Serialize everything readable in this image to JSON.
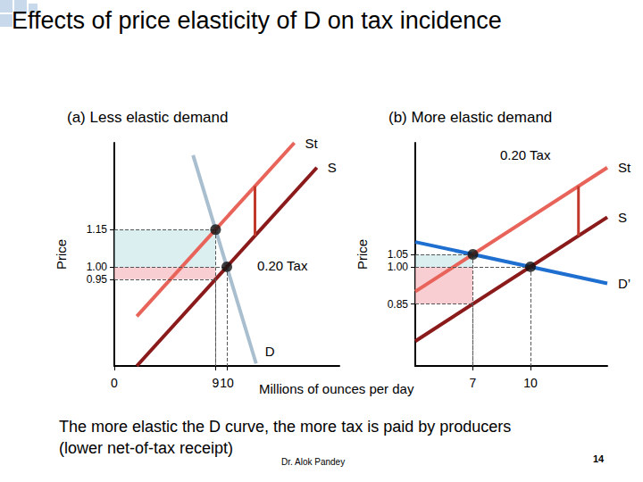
{
  "slide": {
    "title": "Effects of price elasticity of D on tax incidence",
    "footer": [
      "The more elastic the D curve, the more tax is paid by producers",
      "(lower net-of-tax receipt)"
    ],
    "author": "Dr. Alok Pandey",
    "page": 14
  },
  "chart_data": [
    {
      "type": "line",
      "title": "(a) Less elastic demand",
      "x_label": "Millions of ounces per day",
      "y_label": "Price",
      "xlim": [
        0,
        20
      ],
      "ylim": [
        0.6,
        1.5
      ],
      "xticks": [
        0,
        9,
        10
      ],
      "yticks": [
        0.95,
        {
          "value": 1,
          "label": "1.00"
        },
        1.15
      ],
      "grid": false,
      "series": [
        {
          "name": "D",
          "color": "#a9bfcf",
          "x": [
            7,
            12.6
          ],
          "values": [
            1.45,
            0.61
          ]
        },
        {
          "name": "S",
          "color": "#8b1a1a",
          "x": [
            2,
            18
          ],
          "values": [
            0.6,
            1.4
          ]
        },
        {
          "name": "St",
          "color": "#e8645a",
          "x": [
            2,
            16
          ],
          "values": [
            0.8,
            1.5
          ]
        }
      ],
      "points": {
        "with_tax": [
          9,
          1.15
        ],
        "without_tax": [
          10,
          1
        ],
        "net_of_tax": [
          9,
          0.95
        ]
      },
      "tax": 0.2,
      "tax_label": "0.20 Tax"
    },
    {
      "type": "line",
      "title": "(b) More elastic demand",
      "y_label": "Price",
      "xlim": [
        4,
        14
      ],
      "ylim": [
        0.6,
        1.5
      ],
      "xticks": [
        7,
        10
      ],
      "yticks": [
        0.85,
        {
          "value": 1,
          "label": "1.00"
        },
        1.05
      ],
      "grid": false,
      "series": [
        {
          "name": "D’",
          "color": "#1f6fd1",
          "x": [
            4,
            14
          ],
          "values": [
            1.1,
            0.933
          ]
        },
        {
          "name": "S",
          "color": "#8b1a1a",
          "x": [
            4,
            14
          ],
          "values": [
            0.7,
            1.2
          ]
        },
        {
          "name": "St",
          "color": "#e8645a",
          "x": [
            4,
            14
          ],
          "values": [
            0.9,
            1.4
          ]
        }
      ],
      "points": {
        "with_tax": [
          7,
          1.05
        ],
        "without_tax": [
          10,
          1
        ],
        "net_of_tax": [
          7,
          0.85
        ]
      },
      "tax": 0.2,
      "tax_label": "0.20 Tax"
    }
  ]
}
